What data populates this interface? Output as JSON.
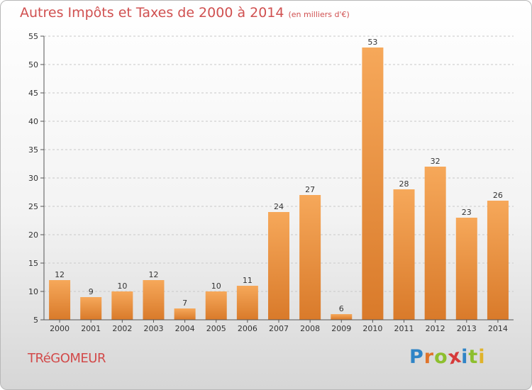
{
  "chart_data": {
    "type": "bar",
    "title": "Autres Impôts et Taxes de 2000 à 2014",
    "unit": "(en milliers d'€)",
    "categories": [
      "2000",
      "2001",
      "2002",
      "2003",
      "2004",
      "2005",
      "2006",
      "2007",
      "2008",
      "2009",
      "2010",
      "2011",
      "2012",
      "2013",
      "2014"
    ],
    "values": [
      12,
      9,
      10,
      12,
      7,
      10,
      11,
      24,
      27,
      6,
      53,
      28,
      32,
      23,
      26
    ],
    "ylim": [
      5,
      55
    ],
    "yticks": [
      5,
      10,
      15,
      20,
      25,
      30,
      35,
      40,
      45,
      50,
      55
    ],
    "grid": "horizontal-dashed",
    "bar_color_light": "#f6a85a",
    "bar_color_dark": "#d97a2a"
  },
  "commune": "TRéGOMEUR",
  "logo": {
    "letters": [
      "P",
      "r",
      "o",
      "x",
      "i",
      "t",
      "i"
    ],
    "colors": [
      "#2f84c6",
      "#e0732a",
      "#8dbf2e",
      "#d63a3a",
      "#2f84c6",
      "#8dbf2e",
      "#e0b32a"
    ]
  }
}
